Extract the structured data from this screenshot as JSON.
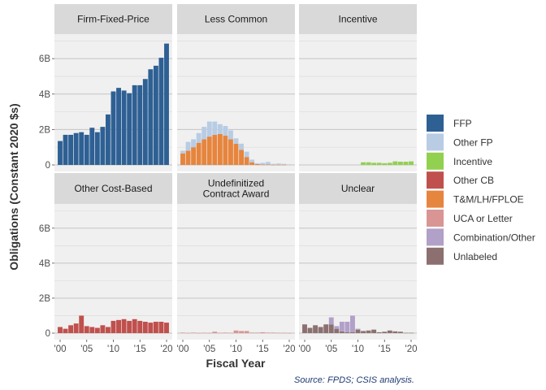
{
  "chart_data": {
    "type": "bar",
    "subtype": "stacked faceted bar",
    "xlabel": "Fiscal Year",
    "ylabel": "Obligations (Constant 2020 $s)",
    "caption": "Source: FPDS; CSIS analysis.",
    "x": [
      2000,
      2001,
      2002,
      2003,
      2004,
      2005,
      2006,
      2007,
      2008,
      2009,
      2010,
      2011,
      2012,
      2013,
      2014,
      2015,
      2016,
      2017,
      2018,
      2019,
      2020
    ],
    "x_ticks": [
      {
        "value": 2000,
        "label": "'00"
      },
      {
        "value": 2005,
        "label": "'05"
      },
      {
        "value": 2010,
        "label": "'10"
      },
      {
        "value": 2015,
        "label": "'15"
      },
      {
        "value": 2020,
        "label": "'20"
      }
    ],
    "y_ticks": [
      {
        "value": 0,
        "label": "0"
      },
      {
        "value": 2,
        "label": "2B"
      },
      {
        "value": 4,
        "label": "4B"
      },
      {
        "value": 6,
        "label": "6B"
      }
    ],
    "ylim": [
      0,
      7.2
    ],
    "units": "billions (constant 2020 $)",
    "legend_position": "right",
    "legend": [
      {
        "key": "ffp",
        "label": "FFP",
        "color": "#2e6094"
      },
      {
        "key": "otherfp",
        "label": "Other FP",
        "color": "#b8cce4"
      },
      {
        "key": "incentive",
        "label": "Incentive",
        "color": "#92d050"
      },
      {
        "key": "othercb",
        "label": "Other CB",
        "color": "#c0504d"
      },
      {
        "key": "tm",
        "label": "T&M/LH/FPLOE",
        "color": "#e6853e"
      },
      {
        "key": "uca",
        "label": "UCA or Letter",
        "color": "#d99594"
      },
      {
        "key": "combo",
        "label": "Combination/Other",
        "color": "#b1a0c7"
      },
      {
        "key": "unlabeled",
        "label": "Unlabeled",
        "color": "#8c7070"
      }
    ],
    "panels": [
      {
        "title": "Firm-Fixed-Price",
        "series": [
          {
            "key": "ffp",
            "values": [
              1.35,
              1.7,
              1.7,
              1.8,
              1.85,
              1.7,
              2.1,
              1.85,
              2.15,
              2.85,
              4.15,
              4.35,
              4.2,
              4.05,
              4.5,
              4.5,
              4.85,
              5.4,
              5.6,
              6.05,
              6.85
            ]
          }
        ]
      },
      {
        "title": "Less Common",
        "series": [
          {
            "key": "tm",
            "values": [
              0.65,
              0.8,
              1.0,
              1.25,
              1.45,
              1.6,
              1.7,
              1.75,
              1.65,
              1.45,
              1.2,
              0.85,
              0.45,
              0.15,
              0.05,
              0.02,
              0.02,
              0.01,
              0.01,
              0.01,
              0.0
            ]
          },
          {
            "key": "otherfp",
            "values": [
              0.15,
              0.5,
              0.45,
              0.55,
              0.7,
              0.85,
              0.75,
              0.55,
              0.55,
              0.5,
              0.3,
              0.35,
              0.3,
              0.15,
              0.05,
              0.1,
              0.15,
              0.05,
              0.07,
              0.05,
              0.03
            ]
          }
        ]
      },
      {
        "title": "Incentive",
        "series": [
          {
            "key": "incentive",
            "values": [
              0,
              0,
              0,
              0,
              0,
              0,
              0,
              0,
              0,
              0,
              0,
              0.15,
              0.15,
              0.12,
              0.12,
              0.1,
              0.12,
              0.2,
              0.18,
              0.18,
              0.2
            ]
          }
        ]
      },
      {
        "title": "Other Cost-Based",
        "series": [
          {
            "key": "othercb",
            "values": [
              0.35,
              0.25,
              0.45,
              0.55,
              1.0,
              0.4,
              0.35,
              0.3,
              0.45,
              0.35,
              0.7,
              0.75,
              0.8,
              0.7,
              0.8,
              0.7,
              0.65,
              0.6,
              0.65,
              0.65,
              0.6
            ]
          }
        ]
      },
      {
        "title": "Undefinitized\nContract Award",
        "series": [
          {
            "key": "uca",
            "values": [
              0.03,
              0.01,
              0.03,
              0.01,
              0.02,
              0.01,
              0.08,
              0.02,
              0.03,
              0.02,
              0.15,
              0.12,
              0.12,
              0.03,
              0.03,
              0.05,
              0.03,
              0.03,
              0.02,
              0.02,
              0.01
            ]
          }
        ]
      },
      {
        "title": "Unclear",
        "series": [
          {
            "key": "unlabeled",
            "values": [
              0.5,
              0.3,
              0.45,
              0.35,
              0.5,
              0.5,
              0.25,
              0.1,
              0.05,
              0.05,
              0.2,
              0.12,
              0.15,
              0.2,
              0.05,
              0.08,
              0.15,
              0.1,
              0.08,
              0.02,
              0.02
            ]
          },
          {
            "key": "combo",
            "values": [
              0,
              0,
              0,
              0,
              0,
              0.4,
              0.15,
              0.55,
              0.6,
              0.95,
              0.05,
              0,
              0,
              0,
              0,
              0,
              0,
              0,
              0,
              0,
              0
            ]
          }
        ]
      }
    ]
  }
}
